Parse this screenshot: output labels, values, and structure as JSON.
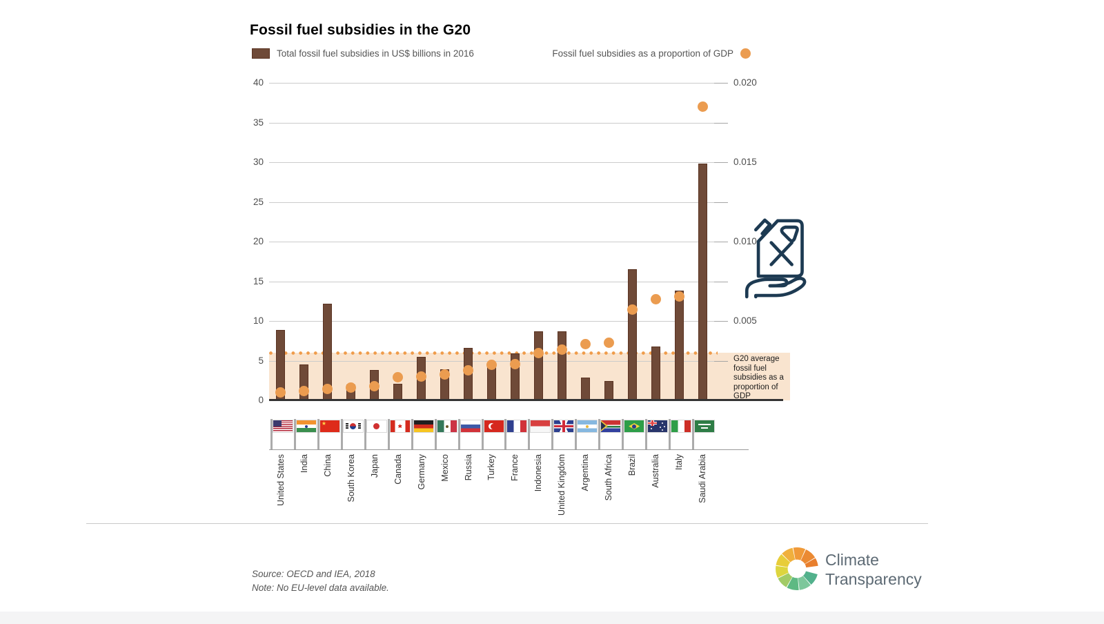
{
  "title": "Fossil fuel subsidies in the G20",
  "legend": {
    "bars_label": "Total fossil fuel subsidies in US$ billions in 2016",
    "dots_label": "Fossil fuel subsidies as a proportion of GDP"
  },
  "chart_data": {
    "type": "bar",
    "title": "Fossil fuel subsidies in the G20",
    "categories": [
      "United States",
      "India",
      "China",
      "South Korea",
      "Japan",
      "Canada",
      "Germany",
      "Mexico",
      "Russia",
      "Turkey",
      "France",
      "Indonesia",
      "United Kingdom",
      "Argentina",
      "South Africa",
      "Brazil",
      "Australia",
      "Italy",
      "Saudi Arabia"
    ],
    "flags": [
      "us",
      "in",
      "cn",
      "kr",
      "jp",
      "ca",
      "de",
      "mx",
      "ru",
      "tr",
      "fr",
      "id",
      "gb",
      "ar",
      "za",
      "br",
      "au",
      "it",
      "sa"
    ],
    "series": [
      {
        "name": "Total fossil fuel subsidies in US$ billions in 2016",
        "type": "bar",
        "axis": "left",
        "values": [
          8.9,
          4.5,
          12.2,
          2.0,
          3.8,
          2.1,
          5.5,
          3.9,
          6.6,
          4.3,
          5.9,
          8.7,
          8.7,
          2.9,
          2.4,
          16.5,
          6.8,
          13.8,
          29.8
        ]
      },
      {
        "name": "Fossil fuel subsidies as a proportion of GDP",
        "type": "scatter",
        "axis": "right",
        "values": [
          0.0005,
          0.0006,
          0.0007,
          0.0008,
          0.0009,
          0.00145,
          0.0015,
          0.00165,
          0.0019,
          0.00225,
          0.0023,
          0.003,
          0.0032,
          0.00355,
          0.00365,
          0.0057,
          0.00635,
          0.00655,
          0.0185
        ]
      }
    ],
    "left_axis": {
      "ticks": [
        0,
        5,
        10,
        15,
        20,
        25,
        30,
        35,
        40
      ],
      "range": [
        0,
        40
      ]
    },
    "right_axis": {
      "labeled_ticks": [
        0.005,
        0.01,
        0.015,
        0.02
      ],
      "minor_ticks": [
        0.0025,
        0.0075,
        0.0125,
        0.0175
      ],
      "range": [
        0,
        0.02
      ],
      "scale_vs_left": 0.0005
    },
    "average_line": {
      "value": 0.003,
      "label": "G20 average fossil fuel subsidies as a proportion of GDP"
    },
    "grid": true,
    "legend_position": "top"
  },
  "footer": {
    "source": "Source: OECD and IEA, 2018",
    "note": "Note: No EU-level data available.",
    "logo_line1": "Climate",
    "logo_line2": "Transparency",
    "logo_segments": [
      {
        "from": 15,
        "to": 48,
        "color": "#52b18c"
      },
      {
        "from": 50,
        "to": 83,
        "color": "#7dc79b"
      },
      {
        "from": 85,
        "to": 118,
        "color": "#5eb983"
      },
      {
        "from": 120,
        "to": 153,
        "color": "#a2cb66"
      },
      {
        "from": 155,
        "to": 188,
        "color": "#ddd53e"
      },
      {
        "from": 190,
        "to": 223,
        "color": "#e8cd3a"
      },
      {
        "from": 225,
        "to": 258,
        "color": "#f0b03d"
      },
      {
        "from": 260,
        "to": 293,
        "color": "#f09a39"
      },
      {
        "from": 295,
        "to": 328,
        "color": "#eb8a33"
      },
      {
        "from": 330,
        "to": 352,
        "color": "#e87f2e"
      }
    ]
  },
  "colors": {
    "bar": "#6f4a38",
    "bar_border": "#5a3322",
    "dot": "#eb9c50",
    "band": "#f9e4cf",
    "avg_dotted": "#ef9c4b",
    "gridline": "#cbcbcb",
    "zero_axis": "#333333",
    "axis_text": "#4d4d4d",
    "icon_stroke": "#1d3a52",
    "logo_text": "#5d6a74"
  }
}
